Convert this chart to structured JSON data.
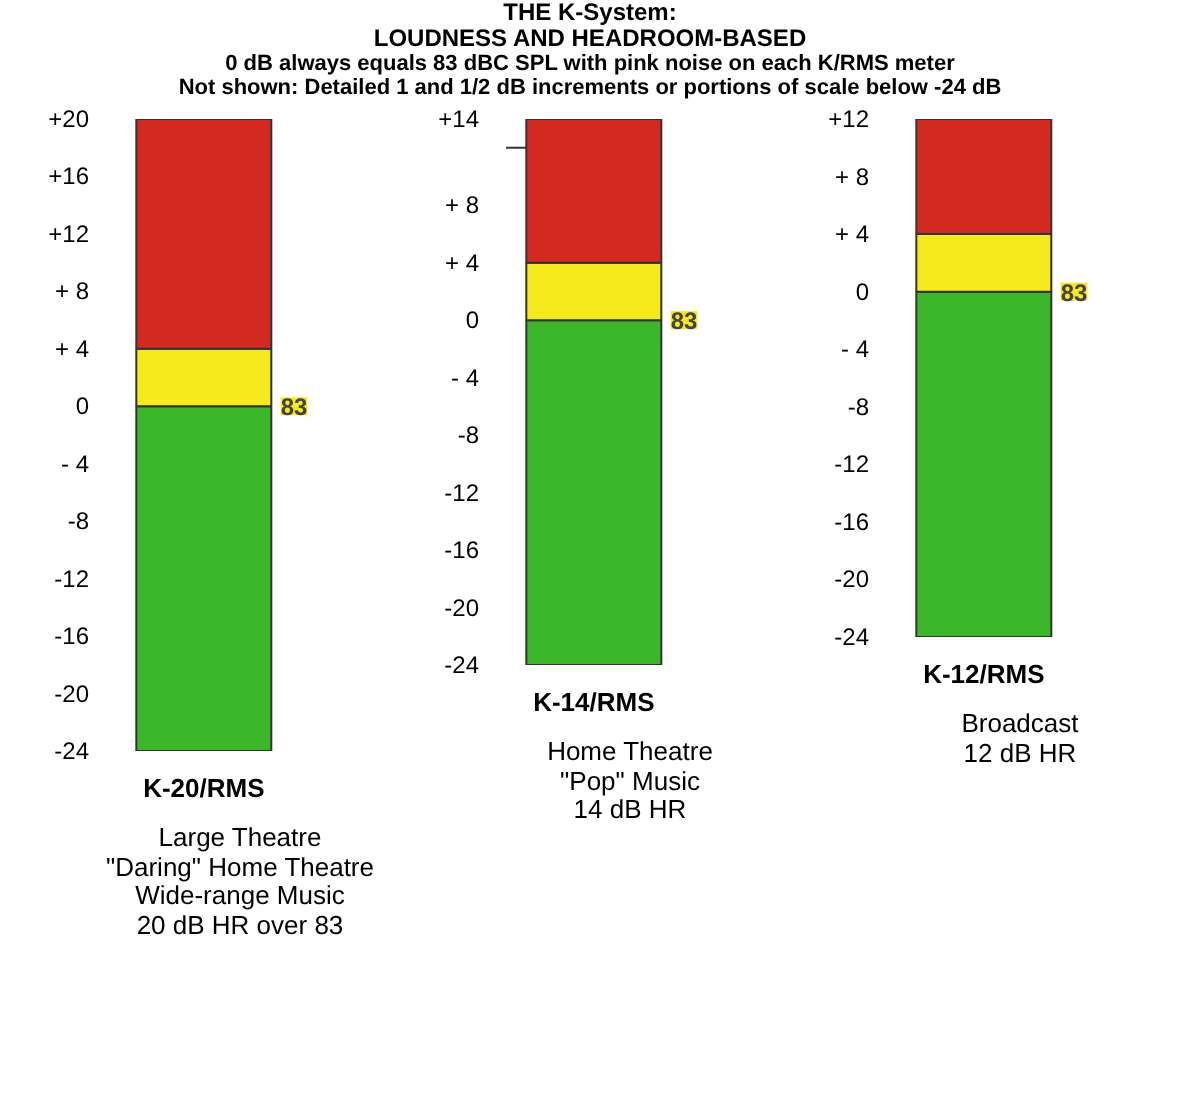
{
  "chart_data": [
    {
      "type": "bar",
      "categories": [
        "K-20/RMS"
      ],
      "stacked": true,
      "series": [
        {
          "color": "#3cb62a",
          "values": [
            -24
          ]
        },
        {
          "color": "#f5ea1e",
          "values": [
            4
          ]
        },
        {
          "color": "#d22a20",
          "values": [
            16
          ]
        }
      ],
      "ylim": [
        -24,
        20
      ],
      "yticks": [
        {
          "value": 20,
          "label": "+20"
        },
        {
          "value": 16,
          "label": "+16"
        },
        {
          "value": 12,
          "label": "+12"
        },
        {
          "value": 8,
          "label": "+ 8"
        },
        {
          "value": 4,
          "label": "+ 4"
        },
        0,
        {
          "value": -4,
          "label": "- 4"
        },
        -8,
        -12,
        -16,
        -20,
        -24
      ],
      "annotations": [
        "83",
        "Large Theatre\n\"Daring\" Home Theatre\nWide-range Music\n20 dB HR over 83"
      ]
    },
    {
      "type": "bar",
      "title": "THE K-System:\nLOUDNESS AND HEADROOM-BASED",
      "subtitle": "0 dB always equals 83 dBC SPL with pink noise on each K/RMS meter\nNot shown: Detailed 1 and 1/2 dB increments or portions of scale below -24 dB",
      "categories": [
        "K-14/RMS"
      ],
      "stacked": true,
      "series": [
        {
          "color": "#3cb62a",
          "values": [
            -24
          ]
        },
        {
          "color": "#f5ea1e",
          "values": [
            4
          ]
        },
        {
          "color": "#d22a20",
          "values": [
            10
          ]
        }
      ],
      "ylim": [
        -24,
        14
      ],
      "yticks": [
        {
          "value": 14,
          "label": "+14"
        },
        {
          "value": 12,
          "label": null
        },
        {
          "value": 8,
          "label": "+ 8"
        },
        {
          "value": 4,
          "label": "+ 4"
        },
        0,
        {
          "value": -4,
          "label": "- 4"
        },
        -8,
        -12,
        -16,
        -20,
        -24
      ],
      "annotations": [
        "83",
        "Home Theatre\n\"Pop\" Music\n14 dB HR"
      ]
    },
    {
      "type": "bar",
      "categories": [
        "K-12/RMS"
      ],
      "stacked": true,
      "series": [
        {
          "color": "#3cb62a",
          "values": [
            -24
          ]
        },
        {
          "color": "#f5ea1e",
          "values": [
            4
          ]
        },
        {
          "color": "#d22a20",
          "values": [
            8
          ]
        }
      ],
      "ylim": [
        -24,
        12
      ],
      "yticks": [
        {
          "value": 12,
          "label": "+12"
        },
        {
          "value": 8,
          "label": "+ 8"
        },
        {
          "value": 4,
          "label": "+ 4"
        },
        0,
        {
          "value": -4,
          "label": "- 4"
        },
        -8,
        -12,
        -16,
        -20,
        -24
      ],
      "annotations": [
        "83",
        "Broadcast\n12 dB HR"
      ]
    }
  ]
}
